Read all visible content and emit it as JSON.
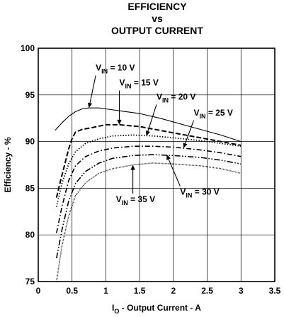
{
  "chart_data": {
    "type": "line",
    "title": [
      "EFFICIENCY",
      "vs",
      "OUTPUT CURRENT"
    ],
    "xlabel": {
      "main": "I",
      "sub": "O",
      "rest": " - Output Current - A"
    },
    "ylabel": "Efficiency - %",
    "xlim": [
      0,
      3.5
    ],
    "ylim": [
      75,
      100
    ],
    "xticks": [
      "0",
      "0.5",
      "1",
      "1.5",
      "2",
      "2.5",
      "3",
      "3.5"
    ],
    "yticks": [
      "75",
      "80",
      "85",
      "90",
      "95",
      "100"
    ],
    "grid": true,
    "series": [
      {
        "name": "V_IN = 10 V",
        "style": "solid",
        "x": [
          0.25,
          0.35,
          0.45,
          0.55,
          0.65,
          0.75,
          0.9,
          1.0,
          1.2,
          1.5,
          1.8,
          2.1,
          2.4,
          2.7,
          3.0
        ],
        "y": [
          91.2,
          92.0,
          92.7,
          93.2,
          93.5,
          93.6,
          93.6,
          93.5,
          93.3,
          93.0,
          92.5,
          91.9,
          91.3,
          90.7,
          90.0
        ]
      },
      {
        "name": "V_IN = 15 V",
        "style": "dash",
        "x": [
          0.27,
          0.33,
          0.4,
          0.45,
          0.5,
          0.55,
          0.65,
          0.8,
          1.0,
          1.2,
          1.5,
          1.8,
          2.1,
          2.4,
          2.7,
          3.0
        ],
        "y": [
          84.0,
          85.8,
          87.8,
          89.2,
          90.3,
          91.0,
          91.3,
          91.5,
          91.8,
          91.8,
          91.6,
          91.2,
          90.8,
          90.4,
          90.0,
          89.6
        ]
      },
      {
        "name": "V_IN = 20 V",
        "style": "dot",
        "x": [
          0.27,
          0.35,
          0.45,
          0.55,
          0.7,
          0.9,
          1.1,
          1.4,
          1.7,
          2.0,
          2.4,
          2.7,
          3.0
        ],
        "y": [
          83.0,
          85.5,
          87.6,
          88.9,
          89.8,
          90.3,
          90.6,
          90.7,
          90.6,
          90.4,
          90.1,
          89.8,
          89.5
        ]
      },
      {
        "name": "V_IN = 25 V",
        "style": "dashdot",
        "x": [
          0.27,
          0.35,
          0.45,
          0.55,
          0.7,
          0.9,
          1.1,
          1.4,
          1.7,
          2.0,
          2.4,
          2.7,
          3.0
        ],
        "y": [
          80.2,
          83.0,
          85.8,
          87.4,
          88.4,
          89.0,
          89.3,
          89.5,
          89.5,
          89.4,
          89.1,
          88.8,
          88.4
        ]
      },
      {
        "name": "V_IN = 30 V",
        "style": "dashdotdot",
        "x": [
          0.27,
          0.35,
          0.45,
          0.55,
          0.7,
          0.9,
          1.1,
          1.4,
          1.7,
          2.0,
          2.4,
          2.7,
          3.0
        ],
        "y": [
          77.5,
          80.5,
          83.6,
          85.5,
          86.8,
          87.7,
          88.2,
          88.5,
          88.6,
          88.5,
          88.3,
          88.0,
          87.6
        ]
      },
      {
        "name": "V_IN = 35 V",
        "style": "finedot",
        "x": [
          0.27,
          0.35,
          0.45,
          0.55,
          0.7,
          0.9,
          1.1,
          1.4,
          1.7,
          2.0,
          2.4,
          2.7,
          3.0
        ],
        "y": [
          75.0,
          78.8,
          82.0,
          84.2,
          85.6,
          86.6,
          87.1,
          87.5,
          87.7,
          87.6,
          87.4,
          87.1,
          86.6
        ]
      }
    ],
    "annotations": [
      {
        "label": {
          "main": "V",
          "sub": "IN",
          "rest": " = 10 V"
        },
        "series": 0,
        "point_x": 0.75,
        "point_y": 93.6,
        "text_x": 0.85,
        "text_y": 97.6
      },
      {
        "label": {
          "main": "V",
          "sub": "IN",
          "rest": " = 15 V"
        },
        "series": 1,
        "point_x": 1.2,
        "point_y": 91.8,
        "text_x": 1.2,
        "text_y": 96.0
      },
      {
        "label": {
          "main": "V",
          "sub": "IN",
          "rest": " = 20 V"
        },
        "series": 2,
        "point_x": 1.6,
        "point_y": 90.6,
        "text_x": 1.75,
        "text_y": 94.5
      },
      {
        "label": {
          "main": "V",
          "sub": "IN",
          "rest": " = 25 V"
        },
        "series": 3,
        "point_x": 2.15,
        "point_y": 89.3,
        "text_x": 2.3,
        "text_y": 92.8
      },
      {
        "label": {
          "main": "V",
          "sub": "IN",
          "rest": " = 30 V"
        },
        "series": 4,
        "point_x": 1.9,
        "point_y": 88.6,
        "text_x": 2.1,
        "text_y": 84.3
      },
      {
        "label": {
          "main": "V",
          "sub": "IN",
          "rest": " = 35 V"
        },
        "series": 5,
        "point_x": 1.4,
        "point_y": 87.5,
        "text_x": 1.15,
        "text_y": 83.5
      }
    ]
  }
}
